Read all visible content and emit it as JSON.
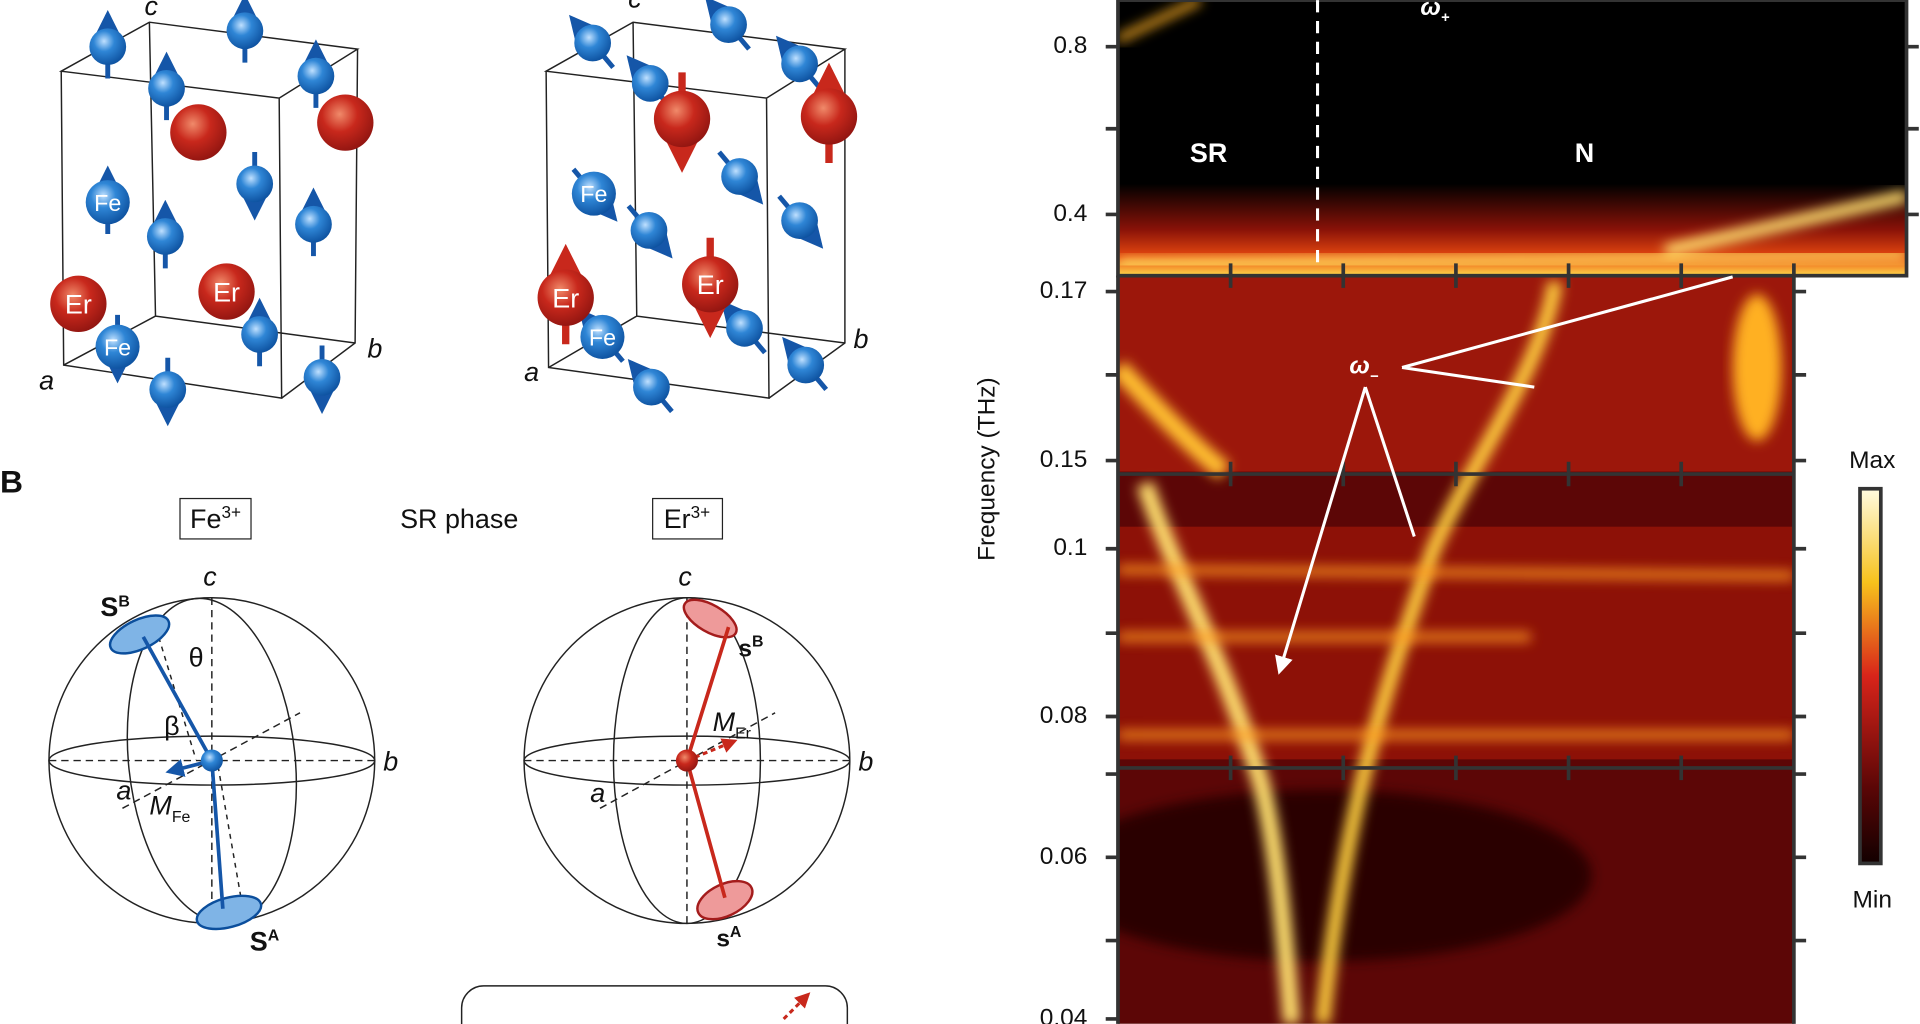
{
  "panel_a": {
    "structures": [
      {
        "c": "c",
        "a": "a",
        "b": "b",
        "fe_labels": [
          "Fe",
          "Fe"
        ],
        "er_labels": [
          "Er",
          "Er"
        ]
      },
      {
        "c": "c",
        "a": "a",
        "b": "b",
        "fe_labels": [
          "Fe",
          "Fe"
        ],
        "er_labels": [
          "Er",
          "Er"
        ]
      }
    ]
  },
  "panel_b": {
    "label": "B",
    "fe_ion": {
      "base": "Fe",
      "sup": "3+"
    },
    "phase": "SR phase",
    "er_ion": {
      "base": "Er",
      "sup": "3+"
    },
    "fe_sphere": {
      "c": "c",
      "b": "b",
      "a": "a",
      "spin_b": {
        "base": "S",
        "sup": "B"
      },
      "spin_a": {
        "base": "S",
        "sup": "A"
      },
      "theta": "θ",
      "beta": "β",
      "moment": {
        "base": "M",
        "sub": "Fe"
      }
    },
    "er_sphere": {
      "c": "c",
      "b": "b",
      "a": "a",
      "spin_b": {
        "base": "s",
        "sup": "B"
      },
      "spin_a": {
        "base": "s",
        "sup": "A"
      },
      "moment": {
        "base": "M",
        "sub": "Er"
      }
    }
  },
  "panel_c": {
    "y_label": "Frequency (THz)",
    "ticks": [
      "0.8",
      "0.4",
      "0.17",
      "0.15",
      "0.1",
      "0.08",
      "0.06",
      "0.04"
    ],
    "regions": [
      "SR",
      "N"
    ],
    "modes": {
      "plus": {
        "base": "ω",
        "sub": "+"
      },
      "minus": {
        "base": "ω",
        "sub": "−"
      }
    },
    "colorbar": {
      "max": "Max",
      "min": "Min"
    }
  }
}
